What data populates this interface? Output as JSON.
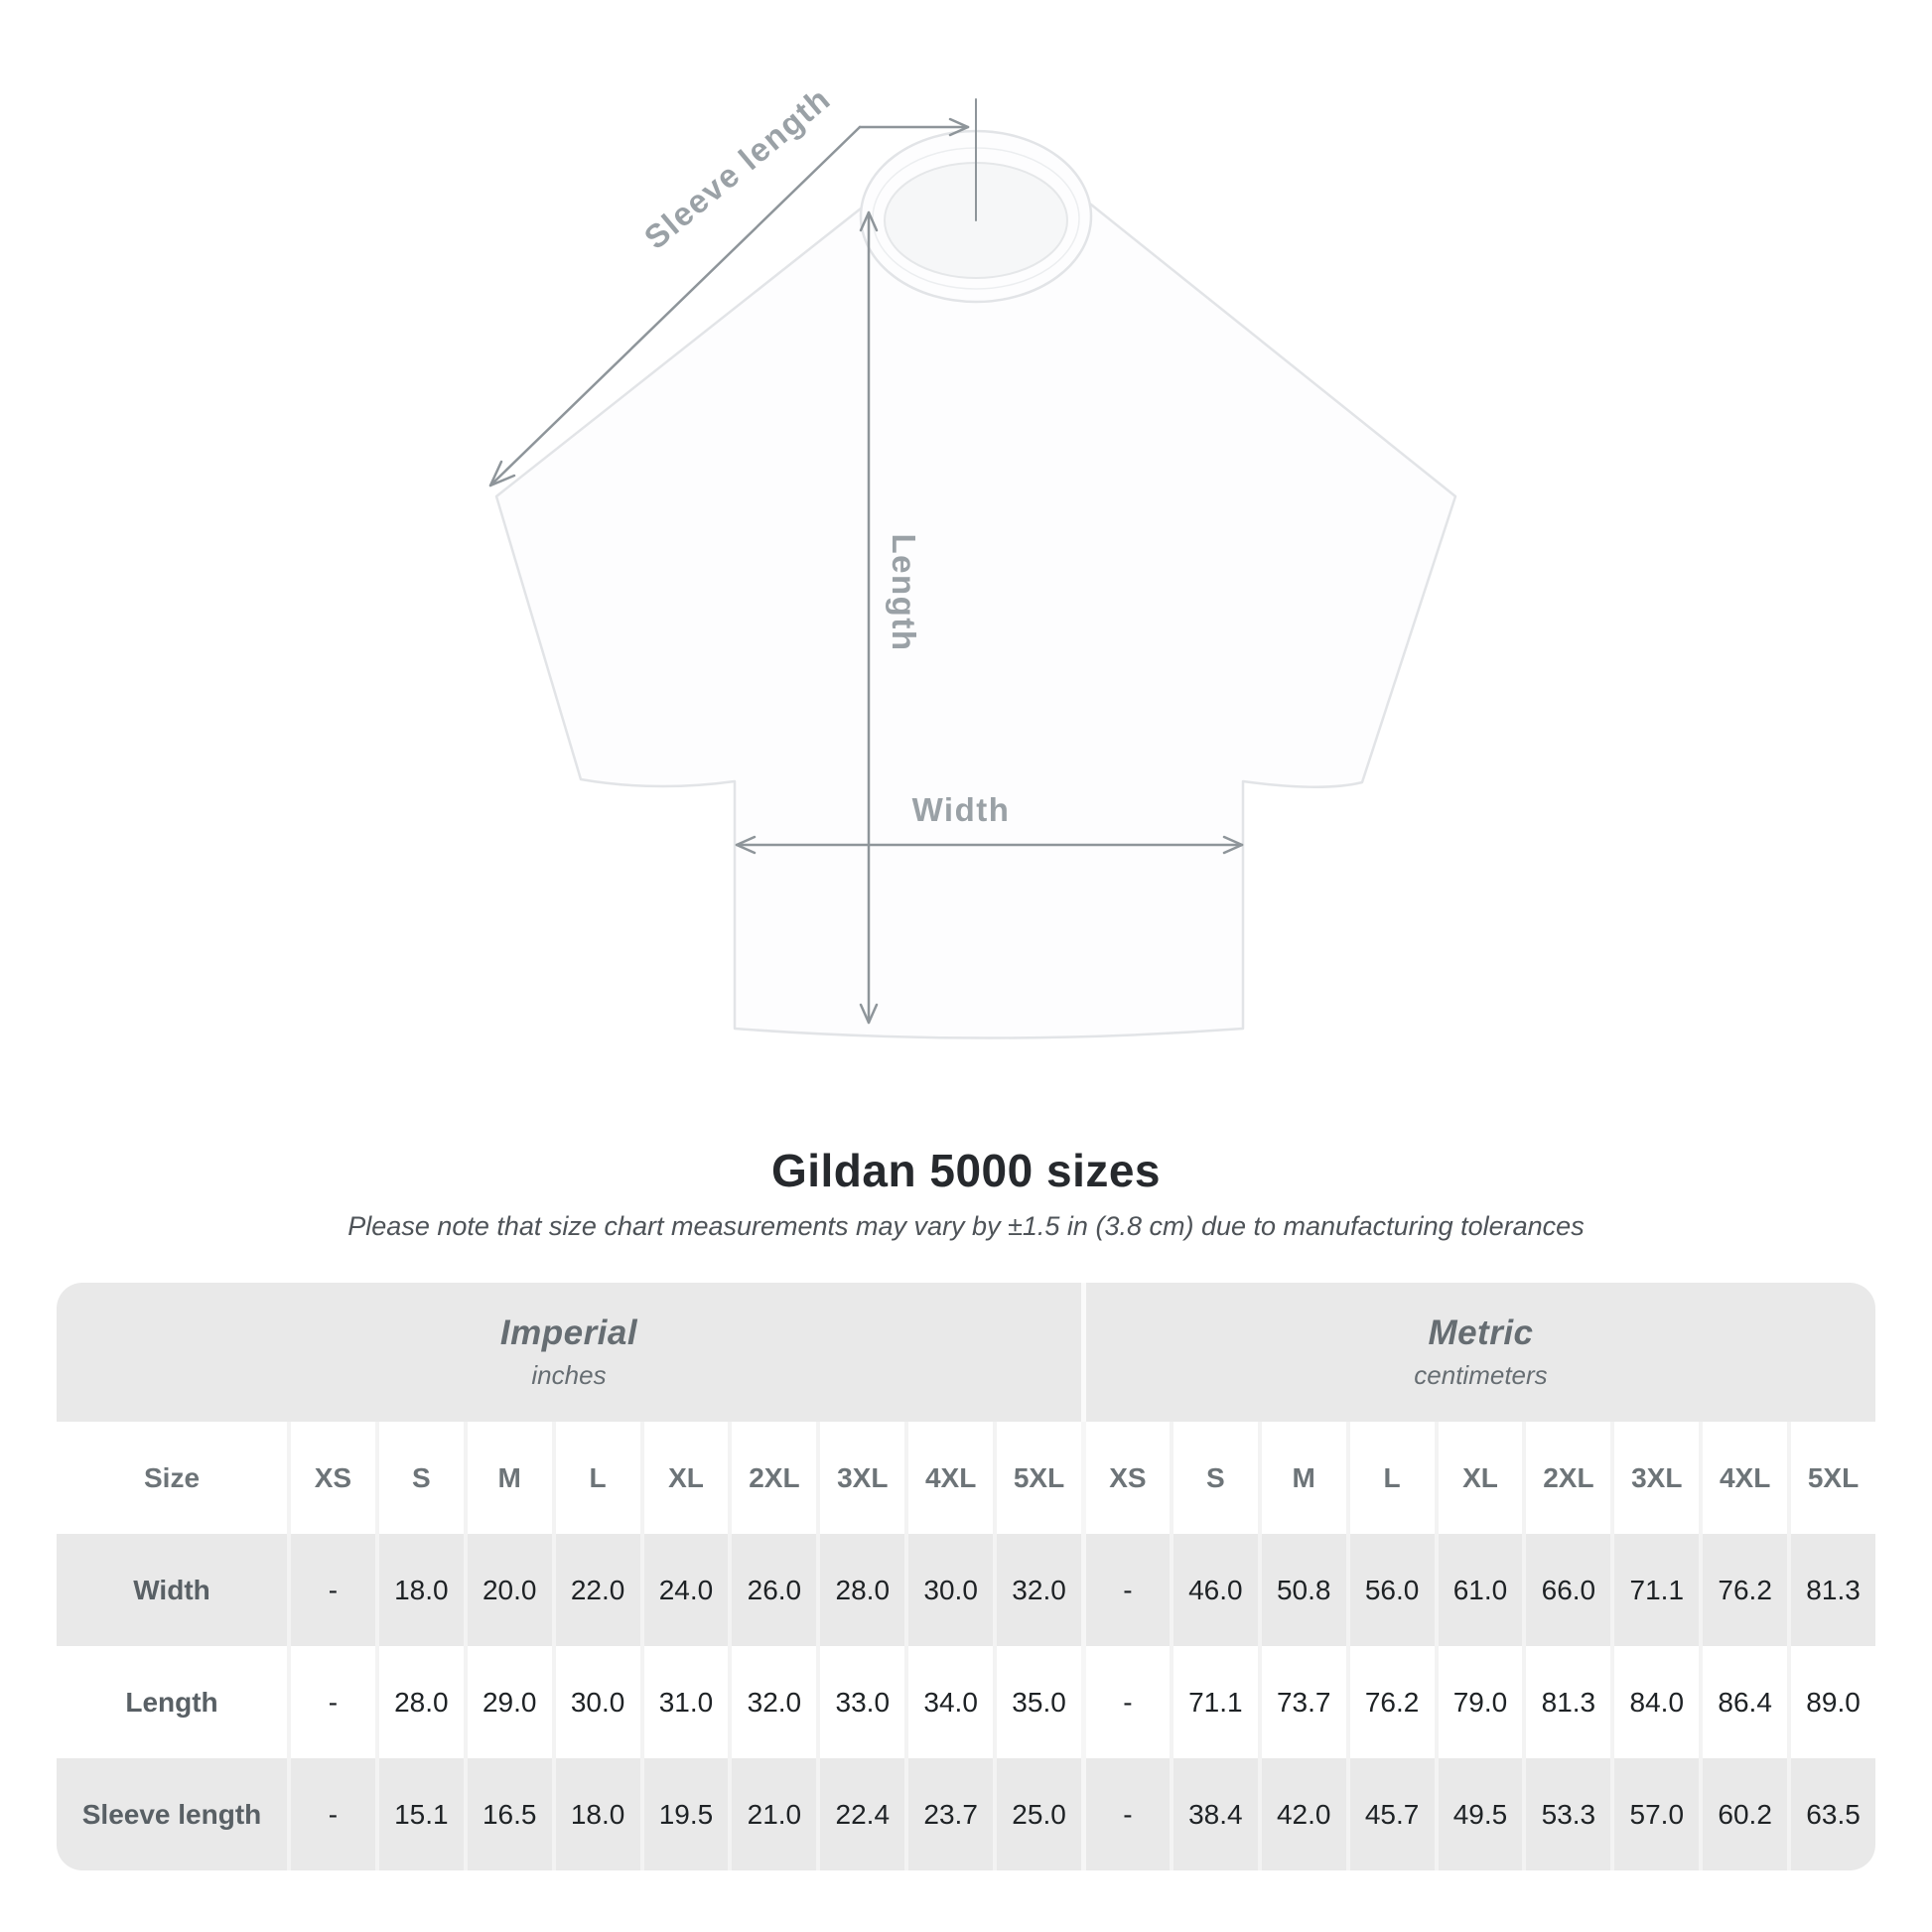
{
  "diagram": {
    "sleeve_length_label": "Sleeve length",
    "length_label": "Length",
    "width_label": "Width"
  },
  "header": {
    "title": "Gildan 5000 sizes",
    "note": "Please note that size chart measurements may vary by ±1.5 in (3.8 cm) due to manufacturing tolerances"
  },
  "table": {
    "corner_label": "Size",
    "sections": [
      {
        "name": "Imperial",
        "unit": "inches"
      },
      {
        "name": "Metric",
        "unit": "centimeters"
      }
    ],
    "sizes": [
      "XS",
      "S",
      "M",
      "L",
      "XL",
      "2XL",
      "3XL",
      "4XL",
      "5XL"
    ],
    "rows": [
      {
        "label": "Width",
        "imperial": [
          "-",
          "18.0",
          "20.0",
          "22.0",
          "24.0",
          "26.0",
          "28.0",
          "30.0",
          "32.0"
        ],
        "metric": [
          "-",
          "46.0",
          "50.8",
          "56.0",
          "61.0",
          "66.0",
          "71.1",
          "76.2",
          "81.3"
        ]
      },
      {
        "label": "Length",
        "imperial": [
          "-",
          "28.0",
          "29.0",
          "30.0",
          "31.0",
          "32.0",
          "33.0",
          "34.0",
          "35.0"
        ],
        "metric": [
          "-",
          "71.1",
          "73.7",
          "76.2",
          "79.0",
          "81.3",
          "84.0",
          "86.4",
          "89.0"
        ]
      },
      {
        "label": "Sleeve length",
        "imperial": [
          "-",
          "15.1",
          "16.5",
          "18.0",
          "19.5",
          "21.0",
          "22.4",
          "23.7",
          "25.0"
        ],
        "metric": [
          "-",
          "38.4",
          "42.0",
          "45.7",
          "49.5",
          "53.3",
          "57.0",
          "60.2",
          "63.5"
        ]
      }
    ]
  },
  "colors": {
    "row_shade": "#e9e9e9",
    "separator": "#f3f3f3",
    "title_text": "#26292d",
    "note_text": "#4e5358",
    "value_text": "#1e2225",
    "label_text": "#596065",
    "arrow": "#8e959a",
    "diagram_label": "#9aa1a6",
    "shirt_outline": "#e2e4e7"
  }
}
